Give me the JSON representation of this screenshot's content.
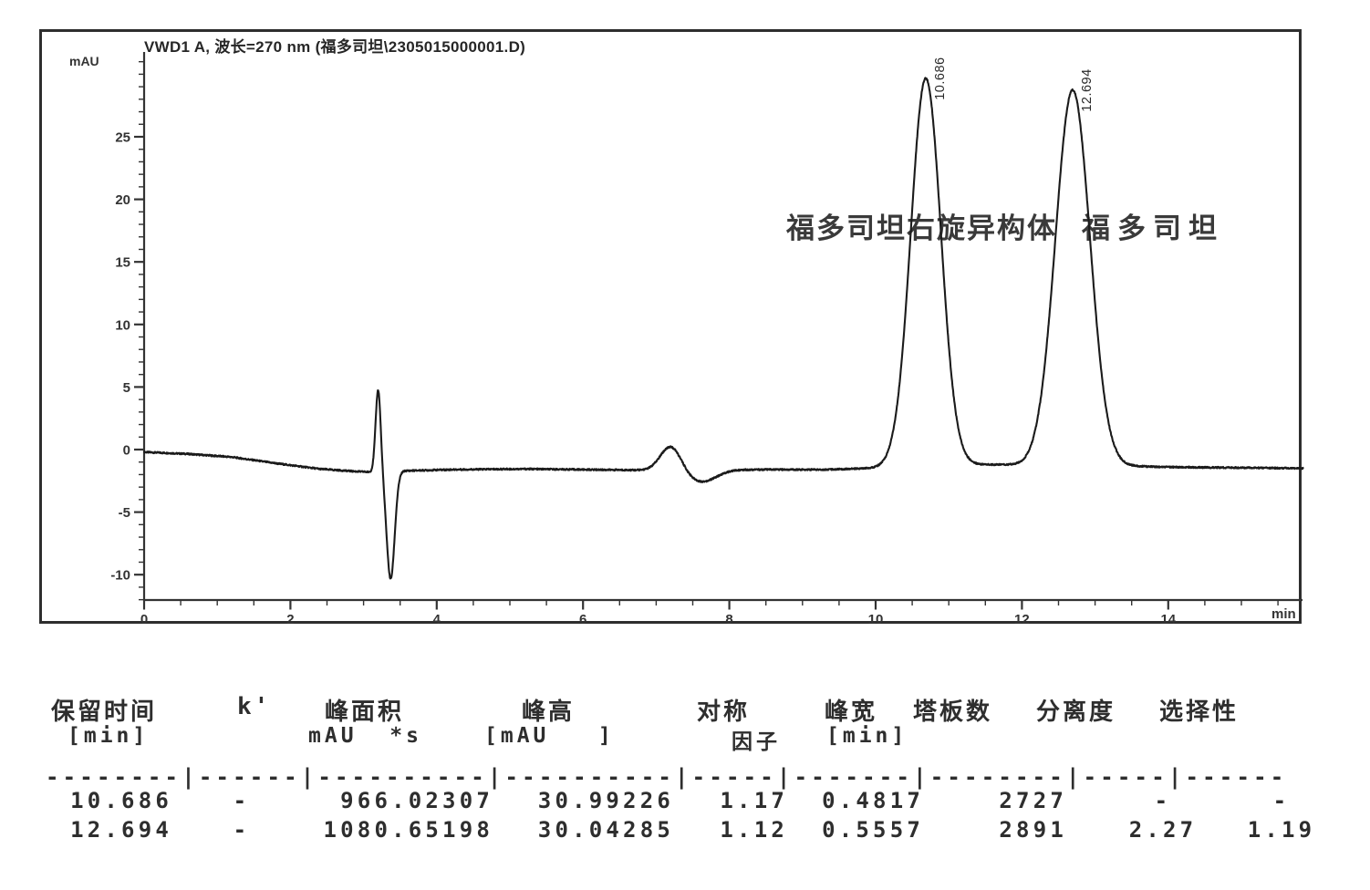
{
  "chart_data": {
    "type": "line",
    "title": "VWD1 A, 波长=270 nm (福多司坦\\2305015000001.D)",
    "xlabel": "min",
    "ylabel": "mAU",
    "xlim": [
      0,
      15.85
    ],
    "ylim": [
      -12,
      31.5
    ],
    "x_ticks": [
      0,
      2,
      4,
      6,
      8,
      10,
      12,
      14
    ],
    "y_ticks": [
      25,
      20,
      15,
      10,
      5,
      0,
      -5,
      -10
    ],
    "grid": false,
    "line_color": "#1b1b1b",
    "peaks": [
      {
        "label": "10.686",
        "rt_min": 10.686,
        "name": "福多司坦右旋异构体",
        "height_mAU": 30.99226,
        "area_mAU_s": 966.02307,
        "width_min": 0.4817,
        "sigma": 0.205
      },
      {
        "label": "12.694",
        "rt_min": 12.694,
        "name": "福多司坦",
        "height_mAU": 30.04285,
        "area_mAU_s": 1080.65198,
        "width_min": 0.5557,
        "sigma": 0.236
      }
    ],
    "baseline_points": [
      [
        0,
        -0.2
      ],
      [
        0.6,
        -0.35
      ],
      [
        1.2,
        -0.6
      ],
      [
        1.8,
        -1.1
      ],
      [
        2.4,
        -1.55
      ],
      [
        2.9,
        -1.75
      ],
      [
        3.1,
        -1.8
      ],
      [
        3.55,
        -1.7
      ],
      [
        4.2,
        -1.6
      ],
      [
        5.2,
        -1.55
      ],
      [
        6.0,
        -1.6
      ],
      [
        6.85,
        -1.65
      ],
      [
        8.3,
        -1.6
      ],
      [
        9.3,
        -1.6
      ],
      [
        9.9,
        -1.5
      ],
      [
        10.2,
        -1.4
      ],
      [
        11.3,
        -1.2
      ],
      [
        11.7,
        -1.2
      ],
      [
        12.2,
        -1.3
      ],
      [
        13.3,
        -1.3
      ],
      [
        14.0,
        -1.4
      ],
      [
        15.85,
        -1.5
      ]
    ],
    "disturbances": [
      {
        "c": 3.2,
        "s": 0.035,
        "a": 6.6,
        "kind": "injection-spike-up"
      },
      {
        "c": 3.37,
        "s": 0.055,
        "a": -8.6,
        "kind": "injection-spike-down"
      },
      {
        "c": 7.2,
        "s": 0.14,
        "a": 1.95,
        "kind": "system-bump-up"
      },
      {
        "c": 7.62,
        "s": 0.2,
        "a": -0.95,
        "kind": "system-bump-down"
      }
    ],
    "noise_amplitude": 0.12
  },
  "table": {
    "columns": [
      {
        "h1": "保留时间",
        "h2": "[min]"
      },
      {
        "h1": "k'",
        "h2": ""
      },
      {
        "h1": "峰面积",
        "h2": "mAU  *s"
      },
      {
        "h1": "峰高",
        "h2": "[mAU   ]"
      },
      {
        "h1": "对称",
        "h2": "因子"
      },
      {
        "h1": "峰宽",
        "h2": "[min]"
      },
      {
        "h1": "塔板数",
        "h2": ""
      },
      {
        "h1": "分离度",
        "h2": ""
      },
      {
        "h1": "选择性",
        "h2": ""
      }
    ],
    "separator": "--------|------|----------|----------|-----|-------|--------|-----|------",
    "rows": [
      [
        "10.686",
        "-",
        "966.02307",
        "30.99226",
        "1.17",
        "0.4817",
        "2727",
        "-",
        "-"
      ],
      [
        "12.694",
        "-",
        "1080.65198",
        "30.04285",
        "1.12",
        "0.5557",
        "2891",
        "2.27",
        "1.19"
      ]
    ]
  }
}
